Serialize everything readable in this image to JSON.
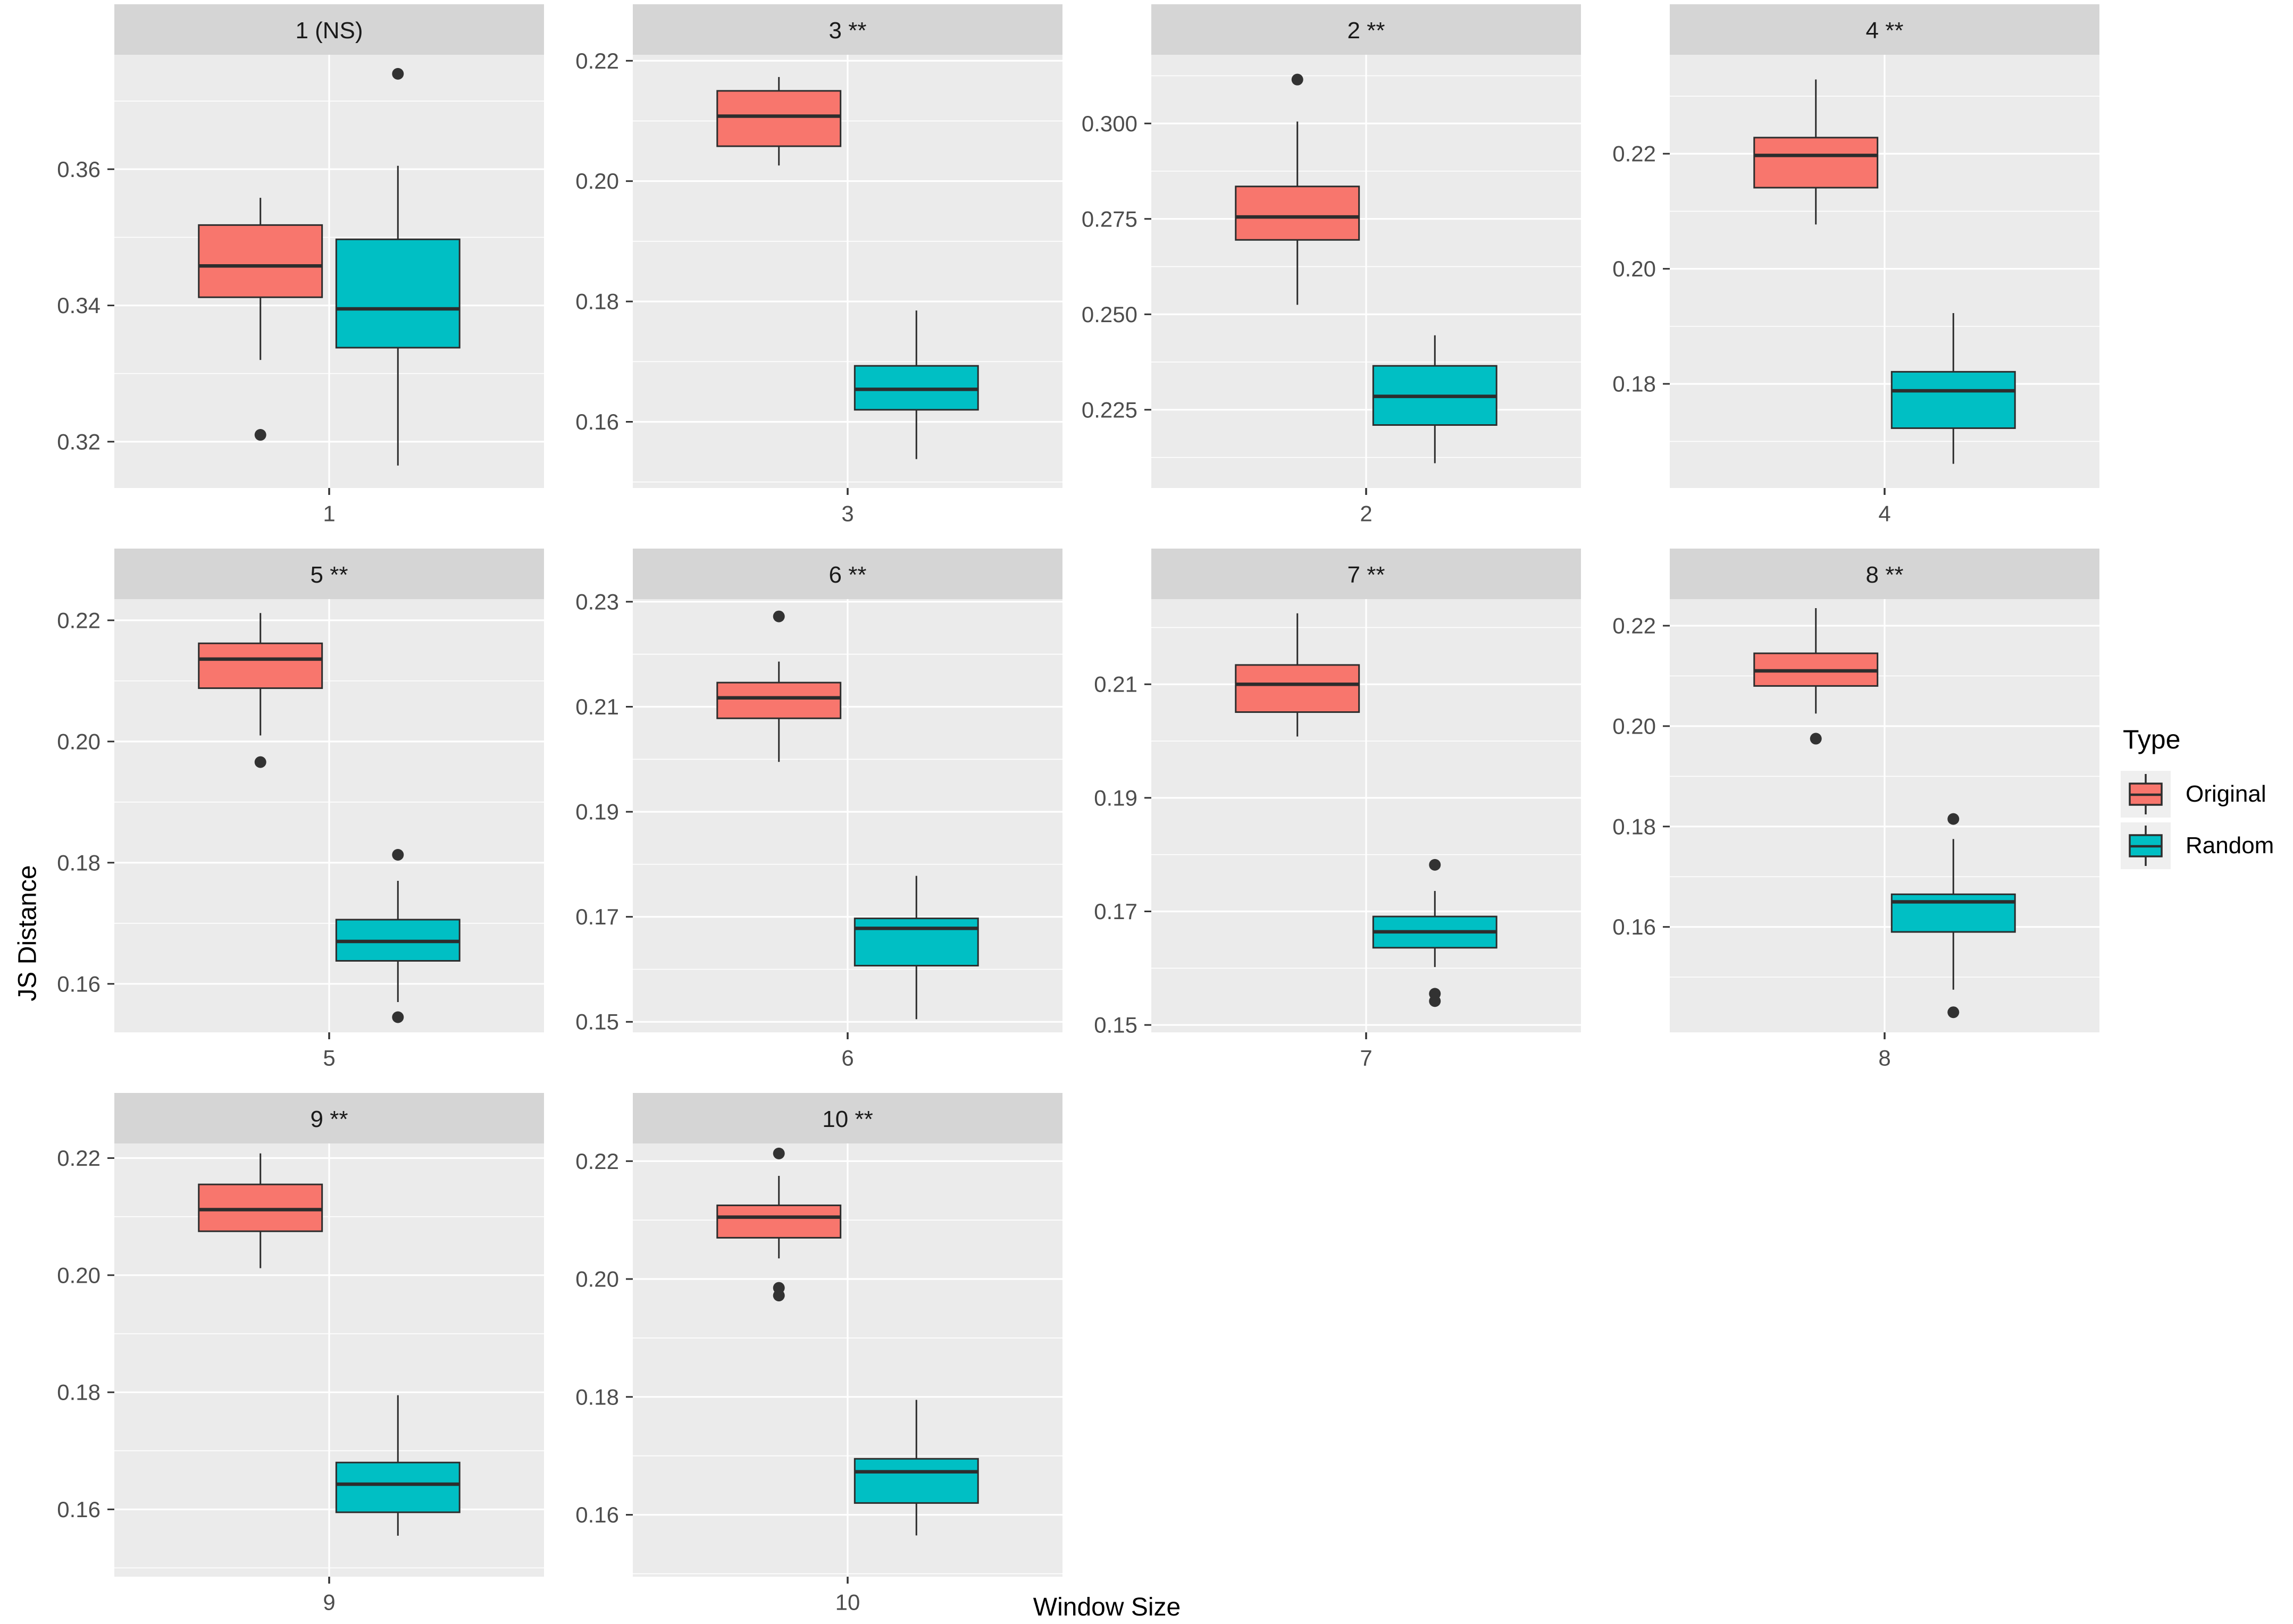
{
  "axes": {
    "x_title": "Window Size",
    "y_title": "JS Distance"
  },
  "legend": {
    "title": "Type",
    "position": "right",
    "items": [
      {
        "label": "Original",
        "color": "#F8766D"
      },
      {
        "label": "Random",
        "color": "#00BFC4"
      }
    ]
  },
  "colors": {
    "original": "#F8766D",
    "random": "#00BFC4",
    "panel_bg": "#EBEBEB",
    "strip_bg": "#D5D5D5",
    "grid": "#FFFFFF",
    "box_line": "#2D2D2D",
    "outlier": "#323232",
    "tick_mark": "#333333",
    "tick_label": "#4D4D4D",
    "strip_text": "#1A1A1A",
    "axis_title": "#000000",
    "legend_key_bg": "#EFEFEF"
  },
  "chart_data": {
    "type": "boxplot",
    "title": "",
    "xlabel": "Window Size",
    "ylabel": "JS Distance",
    "faceting": "by window size, free y scales, 4 columns",
    "series_names": [
      "Original",
      "Random"
    ],
    "facets": [
      {
        "strip_label": "1 (NS)",
        "window": "1",
        "significance": "(NS)",
        "x_tick": "1",
        "ylim": [
          0.3132,
          0.3768
        ],
        "yticks": [
          0.32,
          0.34,
          0.36
        ],
        "ytick_labels": [
          "0.32",
          "0.34",
          "0.36"
        ],
        "series": [
          {
            "name": "Original",
            "whisker_low": 0.332,
            "q1": 0.3412,
            "median": 0.3458,
            "q3": 0.3518,
            "whisker_high": 0.3558,
            "outliers": [
              0.321
            ]
          },
          {
            "name": "Random",
            "whisker_low": 0.3165,
            "q1": 0.3338,
            "median": 0.3395,
            "q3": 0.3497,
            "whisker_high": 0.3605,
            "outliers": [
              0.374
            ]
          }
        ]
      },
      {
        "strip_label": "3 **",
        "window": "3",
        "significance": "**",
        "x_tick": "3",
        "ylim": [
          0.149,
          0.221
        ],
        "yticks": [
          0.16,
          0.18,
          0.2,
          0.22
        ],
        "ytick_labels": [
          "0.16",
          "0.18",
          "0.20",
          "0.22"
        ],
        "series": [
          {
            "name": "Original",
            "whisker_low": 0.2026,
            "q1": 0.2058,
            "median": 0.2108,
            "q3": 0.215,
            "whisker_high": 0.2173,
            "outliers": []
          },
          {
            "name": "Random",
            "whisker_low": 0.1538,
            "q1": 0.162,
            "median": 0.1654,
            "q3": 0.1693,
            "whisker_high": 0.1785,
            "outliers": []
          }
        ]
      },
      {
        "strip_label": "2 **",
        "window": "2",
        "significance": "**",
        "x_tick": "2",
        "ylim": [
          0.2045,
          0.318
        ],
        "yticks": [
          0.225,
          0.25,
          0.275,
          0.3
        ],
        "ytick_labels": [
          "0.225",
          "0.250",
          "0.275",
          "0.300"
        ],
        "series": [
          {
            "name": "Original",
            "whisker_low": 0.2525,
            "q1": 0.2695,
            "median": 0.2755,
            "q3": 0.2835,
            "whisker_high": 0.3005,
            "outliers": [
              0.3115
            ]
          },
          {
            "name": "Random",
            "whisker_low": 0.211,
            "q1": 0.221,
            "median": 0.2285,
            "q3": 0.2365,
            "whisker_high": 0.2445,
            "outliers": []
          }
        ]
      },
      {
        "strip_label": "4 **",
        "window": "4",
        "significance": "**",
        "x_tick": "4",
        "ylim": [
          0.1619,
          0.2372
        ],
        "yticks": [
          0.18,
          0.2,
          0.22
        ],
        "ytick_labels": [
          "0.18",
          "0.20",
          "0.22"
        ],
        "series": [
          {
            "name": "Original",
            "whisker_low": 0.2077,
            "q1": 0.2141,
            "median": 0.2197,
            "q3": 0.2228,
            "whisker_high": 0.2329,
            "outliers": []
          },
          {
            "name": "Random",
            "whisker_low": 0.1661,
            "q1": 0.1723,
            "median": 0.1788,
            "q3": 0.1821,
            "whisker_high": 0.1923,
            "outliers": []
          }
        ]
      },
      {
        "strip_label": "5 **",
        "window": "5",
        "significance": "**",
        "x_tick": "5",
        "ylim": [
          0.152,
          0.2235
        ],
        "yticks": [
          0.16,
          0.18,
          0.2,
          0.22
        ],
        "ytick_labels": [
          "0.16",
          "0.18",
          "0.20",
          "0.22"
        ],
        "series": [
          {
            "name": "Original",
            "whisker_low": 0.201,
            "q1": 0.2088,
            "median": 0.2136,
            "q3": 0.2162,
            "whisker_high": 0.2212,
            "outliers": [
              0.1966
            ]
          },
          {
            "name": "Random",
            "whisker_low": 0.157,
            "q1": 0.1638,
            "median": 0.167,
            "q3": 0.1706,
            "whisker_high": 0.177,
            "outliers": [
              0.1813,
              0.1545
            ]
          }
        ]
      },
      {
        "strip_label": "6 **",
        "window": "6",
        "significance": "**",
        "x_tick": "6",
        "ylim": [
          0.148,
          0.2305
        ],
        "yticks": [
          0.15,
          0.17,
          0.19,
          0.21,
          0.23
        ],
        "ytick_labels": [
          "0.15",
          "0.17",
          "0.19",
          "0.21",
          "0.23"
        ],
        "series": [
          {
            "name": "Original",
            "whisker_low": 0.1995,
            "q1": 0.2078,
            "median": 0.2117,
            "q3": 0.2146,
            "whisker_high": 0.2186,
            "outliers": [
              0.2272
            ]
          },
          {
            "name": "Random",
            "whisker_low": 0.1505,
            "q1": 0.1607,
            "median": 0.1678,
            "q3": 0.1697,
            "whisker_high": 0.1778,
            "outliers": []
          }
        ]
      },
      {
        "strip_label": "7 **",
        "window": "7",
        "significance": "**",
        "x_tick": "7",
        "ylim": [
          0.1487,
          0.225
        ],
        "yticks": [
          0.15,
          0.17,
          0.19,
          0.21
        ],
        "ytick_labels": [
          "0.15",
          "0.17",
          "0.19",
          "0.21"
        ],
        "series": [
          {
            "name": "Original",
            "whisker_low": 0.2008,
            "q1": 0.2051,
            "median": 0.21,
            "q3": 0.2134,
            "whisker_high": 0.2225,
            "outliers": []
          },
          {
            "name": "Random",
            "whisker_low": 0.1602,
            "q1": 0.1636,
            "median": 0.1664,
            "q3": 0.1691,
            "whisker_high": 0.1736,
            "outliers": [
              0.1782,
              0.1555,
              0.1542
            ]
          }
        ]
      },
      {
        "strip_label": "8 **",
        "window": "8",
        "significance": "**",
        "x_tick": "8",
        "ylim": [
          0.139,
          0.2253
        ],
        "yticks": [
          0.16,
          0.18,
          0.2,
          0.22
        ],
        "ytick_labels": [
          "0.16",
          "0.18",
          "0.20",
          "0.22"
        ],
        "series": [
          {
            "name": "Original",
            "whisker_low": 0.2025,
            "q1": 0.208,
            "median": 0.211,
            "q3": 0.2145,
            "whisker_high": 0.2235,
            "outliers": [
              0.1975
            ]
          },
          {
            "name": "Random",
            "whisker_low": 0.1475,
            "q1": 0.159,
            "median": 0.165,
            "q3": 0.1665,
            "whisker_high": 0.1775,
            "outliers": [
              0.1815,
              0.143
            ]
          }
        ]
      },
      {
        "strip_label": "9 **",
        "window": "9",
        "significance": "**",
        "x_tick": "9",
        "ylim": [
          0.1485,
          0.2225
        ],
        "yticks": [
          0.16,
          0.18,
          0.2,
          0.22
        ],
        "ytick_labels": [
          "0.16",
          "0.18",
          "0.20",
          "0.22"
        ],
        "series": [
          {
            "name": "Original",
            "whisker_low": 0.2012,
            "q1": 0.2075,
            "median": 0.2112,
            "q3": 0.2155,
            "whisker_high": 0.2208,
            "outliers": []
          },
          {
            "name": "Random",
            "whisker_low": 0.1555,
            "q1": 0.1595,
            "median": 0.1643,
            "q3": 0.168,
            "whisker_high": 0.1795,
            "outliers": []
          }
        ]
      },
      {
        "strip_label": "10 **",
        "window": "10",
        "significance": "**",
        "x_tick": "10",
        "ylim": [
          0.1495,
          0.223
        ],
        "yticks": [
          0.16,
          0.18,
          0.2,
          0.22
        ],
        "ytick_labels": [
          "0.16",
          "0.18",
          "0.20",
          "0.22"
        ],
        "series": [
          {
            "name": "Original",
            "whisker_low": 0.2035,
            "q1": 0.207,
            "median": 0.2105,
            "q3": 0.2125,
            "whisker_high": 0.2175,
            "outliers": [
              0.2213,
              0.1985,
              0.1972
            ]
          },
          {
            "name": "Random",
            "whisker_low": 0.1565,
            "q1": 0.162,
            "median": 0.1673,
            "q3": 0.1695,
            "whisker_high": 0.1795,
            "outliers": []
          }
        ]
      }
    ]
  }
}
